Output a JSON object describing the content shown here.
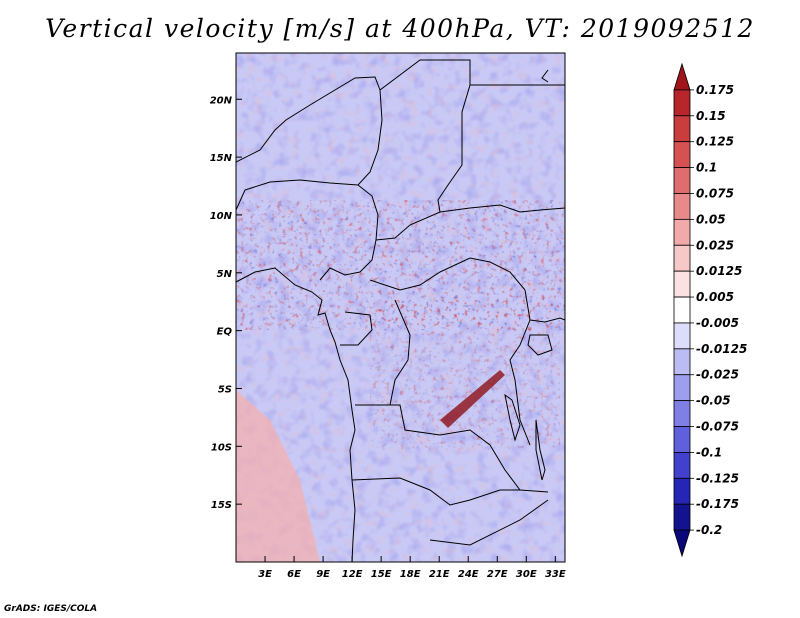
{
  "title": "Vertical velocity [m/s] at 400hPa, VT: 2019092512",
  "credit": "GrADS: IGES/COLA",
  "map": {
    "lon_range": [
      0,
      34
    ],
    "lat_range": [
      -20,
      24
    ],
    "x_ticks": [
      "3E",
      "6E",
      "9E",
      "12E",
      "15E",
      "18E",
      "21E",
      "24E",
      "27E",
      "30E",
      "33E"
    ],
    "x_tick_values": [
      3,
      6,
      9,
      12,
      15,
      18,
      21,
      24,
      27,
      30,
      33
    ],
    "y_ticks": [
      "20N",
      "15N",
      "10N",
      "5N",
      "EQ",
      "5S",
      "10S",
      "15S"
    ],
    "y_tick_values": [
      20,
      15,
      10,
      5,
      0,
      -5,
      -10,
      -15
    ]
  },
  "colorbar": {
    "labels": [
      "0.175",
      "0.15",
      "0.125",
      "0.1",
      "0.075",
      "0.05",
      "0.025",
      "0.0125",
      "0.005",
      "-0.005",
      "-0.0125",
      "-0.025",
      "-0.05",
      "-0.075",
      "-0.1",
      "-0.125",
      "-0.175",
      "-0.2"
    ],
    "colors": [
      "#a0151b",
      "#b6262b",
      "#c93d3d",
      "#d65252",
      "#df6d6d",
      "#e88a8a",
      "#f1a9a9",
      "#f7c8c8",
      "#fbe1e1",
      "#ffffff",
      "#dcdcfb",
      "#bcbcf4",
      "#9e9eee",
      "#7f7fe6",
      "#6060dc",
      "#4141cd",
      "#2626b6",
      "#13138f",
      "#08087a"
    ]
  }
}
